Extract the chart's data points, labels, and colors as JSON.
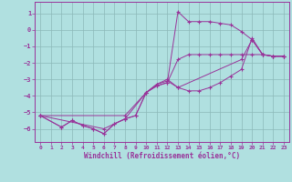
{
  "bg_color": "#b0e0e0",
  "grid_color": "#8cb8b8",
  "line_color": "#993399",
  "xlabel": "Windchill (Refroidissement éolien,°C)",
  "xlim": [
    -0.5,
    23.5
  ],
  "ylim": [
    -6.8,
    1.7
  ],
  "yticks": [
    1,
    0,
    -1,
    -2,
    -3,
    -4,
    -5,
    -6
  ],
  "xticks": [
    0,
    1,
    2,
    3,
    4,
    5,
    6,
    7,
    8,
    9,
    10,
    11,
    12,
    13,
    14,
    15,
    16,
    17,
    18,
    19,
    20,
    21,
    22,
    23
  ],
  "lines": [
    {
      "x": [
        0,
        2,
        3,
        4,
        5,
        6,
        7,
        8,
        9,
        10,
        11,
        12,
        13,
        14,
        15,
        16,
        17,
        18,
        19,
        20,
        21,
        22,
        23
      ],
      "y": [
        -5.2,
        -5.9,
        -5.5,
        -5.8,
        -6.0,
        -6.3,
        -5.7,
        -5.4,
        -5.2,
        -3.8,
        -3.4,
        -3.2,
        1.1,
        0.5,
        0.5,
        0.5,
        0.4,
        0.3,
        -0.1,
        -0.6,
        -1.5,
        -1.6,
        -1.6
      ]
    },
    {
      "x": [
        0,
        2,
        3,
        4,
        5,
        6,
        7,
        8,
        9,
        10,
        11,
        12,
        13,
        14,
        15,
        16,
        17,
        18,
        19,
        20,
        21,
        22,
        23
      ],
      "y": [
        -5.2,
        -5.9,
        -5.5,
        -5.8,
        -6.0,
        -6.3,
        -5.7,
        -5.4,
        -5.2,
        -3.8,
        -3.4,
        -3.2,
        -1.8,
        -1.5,
        -1.5,
        -1.5,
        -1.5,
        -1.5,
        -1.5,
        -1.5,
        -1.5,
        -1.6,
        -1.6
      ]
    },
    {
      "x": [
        0,
        6,
        8,
        10,
        11,
        12,
        13,
        19,
        20,
        21,
        22,
        23
      ],
      "y": [
        -5.2,
        -6.0,
        -5.4,
        -3.8,
        -3.3,
        -3.0,
        -3.5,
        -1.8,
        -0.6,
        -1.5,
        -1.6,
        -1.6
      ]
    },
    {
      "x": [
        0,
        8,
        10,
        11,
        12,
        13,
        14,
        15,
        16,
        17,
        18,
        19,
        20,
        21,
        22,
        23
      ],
      "y": [
        -5.2,
        -5.2,
        -3.8,
        -3.3,
        -3.1,
        -3.5,
        -3.7,
        -3.7,
        -3.5,
        -3.2,
        -2.8,
        -2.4,
        -0.5,
        -1.5,
        -1.6,
        -1.6
      ]
    }
  ]
}
